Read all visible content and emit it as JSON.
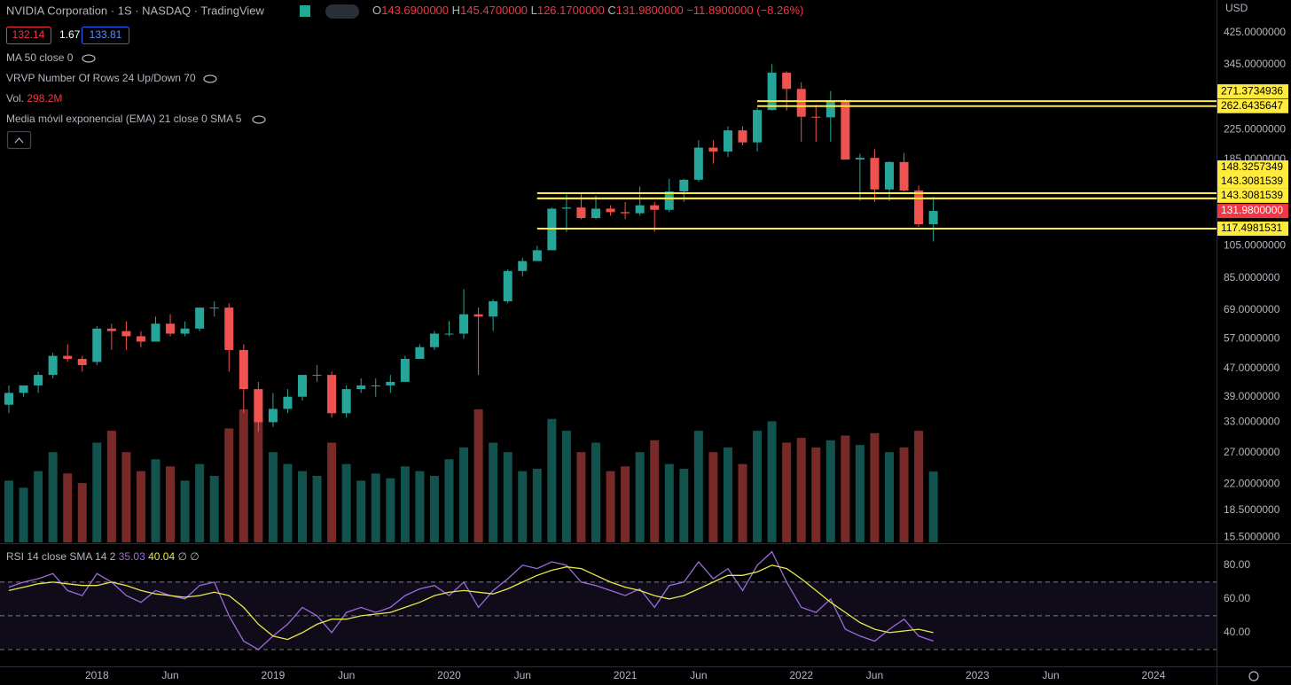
{
  "chart_data": {
    "type": "candlestick",
    "title": "NVIDIA Corporation · 1S · NASDAQ · TradingView",
    "currency": "USD",
    "ohlc_legend": [
      {
        "key": "O",
        "value": 143.69,
        "label": "143.6900000"
      },
      {
        "key": "H",
        "value": 145.47,
        "label": "145.4700000"
      },
      {
        "key": "L",
        "value": 126.17,
        "label": "126.1700000"
      },
      {
        "key": "C",
        "value": 131.98,
        "label": "131.9800000"
      }
    ],
    "change": {
      "value": -11.89,
      "label": "−11.8900000",
      "percent": -8.26,
      "percent_label": "(−8.26%)"
    },
    "price_badges": [
      132.14,
      1.67,
      133.81
    ],
    "indicators": [
      "MA 50 close 0",
      "VRVP Number Of Rows 24 Up/Down 70",
      "Media móvil exponencial (EMA) 21 close 0 SMA 5"
    ],
    "colors": {
      "up": "#26a69a",
      "down": "#ef5350"
    },
    "log_scale": true,
    "x": [
      "2017-07",
      "2017-08",
      "2017-09",
      "2017-10",
      "2017-11",
      "2017-12",
      "2018-01",
      "2018-02",
      "2018-03",
      "2018-04",
      "2018-05",
      "2018-06",
      "2018-07",
      "2018-08",
      "2018-09",
      "2018-10",
      "2018-11",
      "2018-12",
      "2019-01",
      "2019-02",
      "2019-03",
      "2019-04",
      "2019-05",
      "2019-06",
      "2019-07",
      "2019-08",
      "2019-09",
      "2019-10",
      "2019-11",
      "2019-12",
      "2020-01",
      "2020-02",
      "2020-03",
      "2020-04",
      "2020-05",
      "2020-06",
      "2020-07",
      "2020-08",
      "2020-09",
      "2020-10",
      "2020-11",
      "2020-12",
      "2021-01",
      "2021-02",
      "2021-03",
      "2021-04",
      "2021-05",
      "2021-06",
      "2021-07",
      "2021-08",
      "2021-09",
      "2021-10",
      "2021-11",
      "2021-12",
      "2022-01",
      "2022-02",
      "2022-03",
      "2022-04",
      "2022-05",
      "2022-06",
      "2022-07",
      "2022-08",
      "2022-09",
      "2022-10"
    ],
    "open": [
      37,
      40,
      42,
      45,
      51,
      50,
      49,
      61,
      60,
      58,
      56,
      63,
      59,
      61,
      70,
      70,
      53,
      41,
      33,
      36,
      39,
      45,
      45,
      35,
      41,
      42,
      42,
      43,
      50,
      54,
      59,
      59,
      67,
      66,
      73,
      89,
      95,
      102,
      134,
      135,
      126,
      134,
      131,
      130,
      137,
      133,
      150,
      162,
      200,
      195,
      224,
      207,
      256,
      327,
      294,
      245,
      244,
      273,
      185,
      187,
      152,
      182,
      151,
      121
    ],
    "high": [
      42,
      42,
      46,
      52,
      55,
      51,
      62,
      63,
      64,
      60,
      66,
      67,
      64,
      70,
      73,
      72,
      55,
      43,
      40,
      41,
      45,
      48,
      46,
      42,
      44,
      44,
      45,
      51,
      55,
      60,
      64,
      79,
      70,
      74,
      90,
      97,
      105,
      135,
      147,
      148,
      146,
      137,
      140,
      155,
      140,
      163,
      163,
      210,
      210,
      230,
      230,
      260,
      346,
      330,
      307,
      265,
      290,
      275,
      192,
      198,
      183,
      193,
      156,
      145
    ],
    "low": [
      35,
      39,
      40,
      44,
      49,
      46,
      48,
      53,
      53,
      54,
      56,
      58,
      58,
      60,
      66,
      46,
      35,
      31,
      32,
      35,
      38,
      43,
      34,
      34,
      40,
      39,
      40,
      43,
      50,
      53,
      58,
      57,
      45,
      60,
      72,
      86,
      95,
      102,
      115,
      125,
      125,
      128,
      125,
      128,
      115,
      131,
      140,
      160,
      180,
      188,
      203,
      195,
      255,
      255,
      208,
      208,
      208,
      185,
      141,
      140,
      141,
      150,
      119,
      108
    ],
    "close": [
      40,
      42,
      45,
      51,
      50,
      48,
      61,
      60,
      58,
      56,
      63,
      59,
      61,
      70,
      70,
      53,
      41,
      33,
      36,
      39,
      45,
      45,
      35,
      41,
      42,
      42,
      43,
      50,
      54,
      59,
      59,
      67,
      66,
      73,
      89,
      95,
      102,
      134,
      135,
      126,
      134,
      131,
      130,
      137,
      133,
      150,
      162,
      200,
      195,
      224,
      207,
      256,
      327,
      294,
      245,
      244,
      273,
      185,
      187,
      152,
      182,
      151,
      121,
      132
    ],
    "ylim": [
      15.0,
      527
    ],
    "yticks": [
      {
        "value": 425,
        "label": "425.0000000"
      },
      {
        "value": 345,
        "label": "345.0000000"
      },
      {
        "value": 225,
        "label": "225.0000000"
      },
      {
        "value": 185,
        "label": "185.0000000"
      },
      {
        "value": 105,
        "label": "105.0000000"
      },
      {
        "value": 85,
        "label": "85.0000000"
      },
      {
        "value": 69,
        "label": "69.0000000"
      },
      {
        "value": 57,
        "label": "57.0000000"
      },
      {
        "value": 47,
        "label": "47.0000000"
      },
      {
        "value": 39,
        "label": "39.0000000"
      },
      {
        "value": 33,
        "label": "33.0000000"
      },
      {
        "value": 27,
        "label": "27.0000000"
      },
      {
        "value": 22,
        "label": "22.0000000"
      },
      {
        "value": 18.5,
        "label": "18.5000000"
      },
      {
        "value": 15.5,
        "label": "15.5000000"
      }
    ],
    "xticks": [
      {
        "value": "2018-01",
        "label": "2018"
      },
      {
        "value": "2018-06",
        "label": "Jun"
      },
      {
        "value": "2019-01",
        "label": "2019"
      },
      {
        "value": "2019-06",
        "label": "Jun"
      },
      {
        "value": "2020-01",
        "label": "2020"
      },
      {
        "value": "2020-06",
        "label": "Jun"
      },
      {
        "value": "2021-01",
        "label": "2021"
      },
      {
        "value": "2021-06",
        "label": "Jun"
      },
      {
        "value": "2022-01",
        "label": "2022"
      },
      {
        "value": "2022-06",
        "label": "Jun"
      },
      {
        "value": "2023-01",
        "label": "2023"
      },
      {
        "value": "2023-06",
        "label": "Jun"
      },
      {
        "value": "2024-01",
        "label": "2024"
      }
    ],
    "levels": [
      {
        "value": 271.3734936,
        "start": "2021-10"
      },
      {
        "value": 262.6435647,
        "start": "2021-10"
      },
      {
        "value": 148.3257349,
        "start": "2020-07"
      },
      {
        "value": 143.3081539,
        "start": "2020-07"
      },
      {
        "value": 143.3081539,
        "start": "2020-07"
      },
      {
        "value": 117.4981531,
        "start": "2020-07"
      }
    ],
    "level_color": "#ffeb3b",
    "last_price": {
      "value": 131.98,
      "label": "131.9800000"
    },
    "volume": {
      "name": "Vol.",
      "last_value_label": "298.2M",
      "values": [
        260,
        230,
        300,
        380,
        290,
        250,
        420,
        470,
        380,
        300,
        350,
        320,
        260,
        330,
        280,
        480,
        560,
        520,
        380,
        330,
        300,
        280,
        420,
        330,
        260,
        290,
        270,
        320,
        300,
        280,
        350,
        400,
        560,
        420,
        380,
        300,
        310,
        520,
        470,
        380,
        420,
        300,
        320,
        380,
        430,
        330,
        310,
        470,
        380,
        400,
        330,
        470,
        510,
        420,
        440,
        400,
        430,
        450,
        410,
        460,
        380,
        400,
        470,
        298.2
      ]
    },
    "rsi": {
      "label": "RSI 14 close SMA 14 2",
      "ylim": [
        20,
        92
      ],
      "yticks": [
        {
          "value": 80,
          "label": "80.00"
        },
        {
          "value": 60,
          "label": "60.00"
        },
        {
          "value": 40,
          "label": "40.00"
        }
      ],
      "bands": [
        70,
        50,
        30
      ],
      "empty_marks": [
        "∅",
        "∅"
      ],
      "series": [
        {
          "color": "#9c6ade",
          "values": [
            67,
            70,
            72,
            75,
            65,
            62,
            75,
            70,
            62,
            58,
            65,
            62,
            60,
            68,
            70,
            50,
            35,
            30,
            38,
            45,
            55,
            50,
            40,
            52,
            55,
            52,
            55,
            62,
            66,
            68,
            62,
            70,
            55,
            65,
            72,
            80,
            78,
            82,
            80,
            70,
            68,
            65,
            62,
            66,
            55,
            68,
            70,
            82,
            72,
            78,
            65,
            80,
            88,
            70,
            55,
            52,
            60,
            42,
            38,
            35,
            42,
            48,
            38,
            35.03
          ]
        },
        {
          "color": "#e8e84a",
          "values": [
            65,
            67,
            69,
            70,
            69,
            68,
            68,
            70,
            68,
            65,
            63,
            62,
            61,
            62,
            64,
            62,
            55,
            45,
            38,
            36,
            40,
            45,
            48,
            48,
            50,
            51,
            52,
            55,
            58,
            62,
            64,
            65,
            64,
            63,
            66,
            70,
            74,
            77,
            79,
            78,
            74,
            70,
            67,
            65,
            62,
            60,
            62,
            66,
            70,
            74,
            74,
            76,
            80,
            78,
            72,
            65,
            58,
            52,
            46,
            42,
            40,
            41,
            42,
            40.04
          ]
        }
      ]
    }
  }
}
